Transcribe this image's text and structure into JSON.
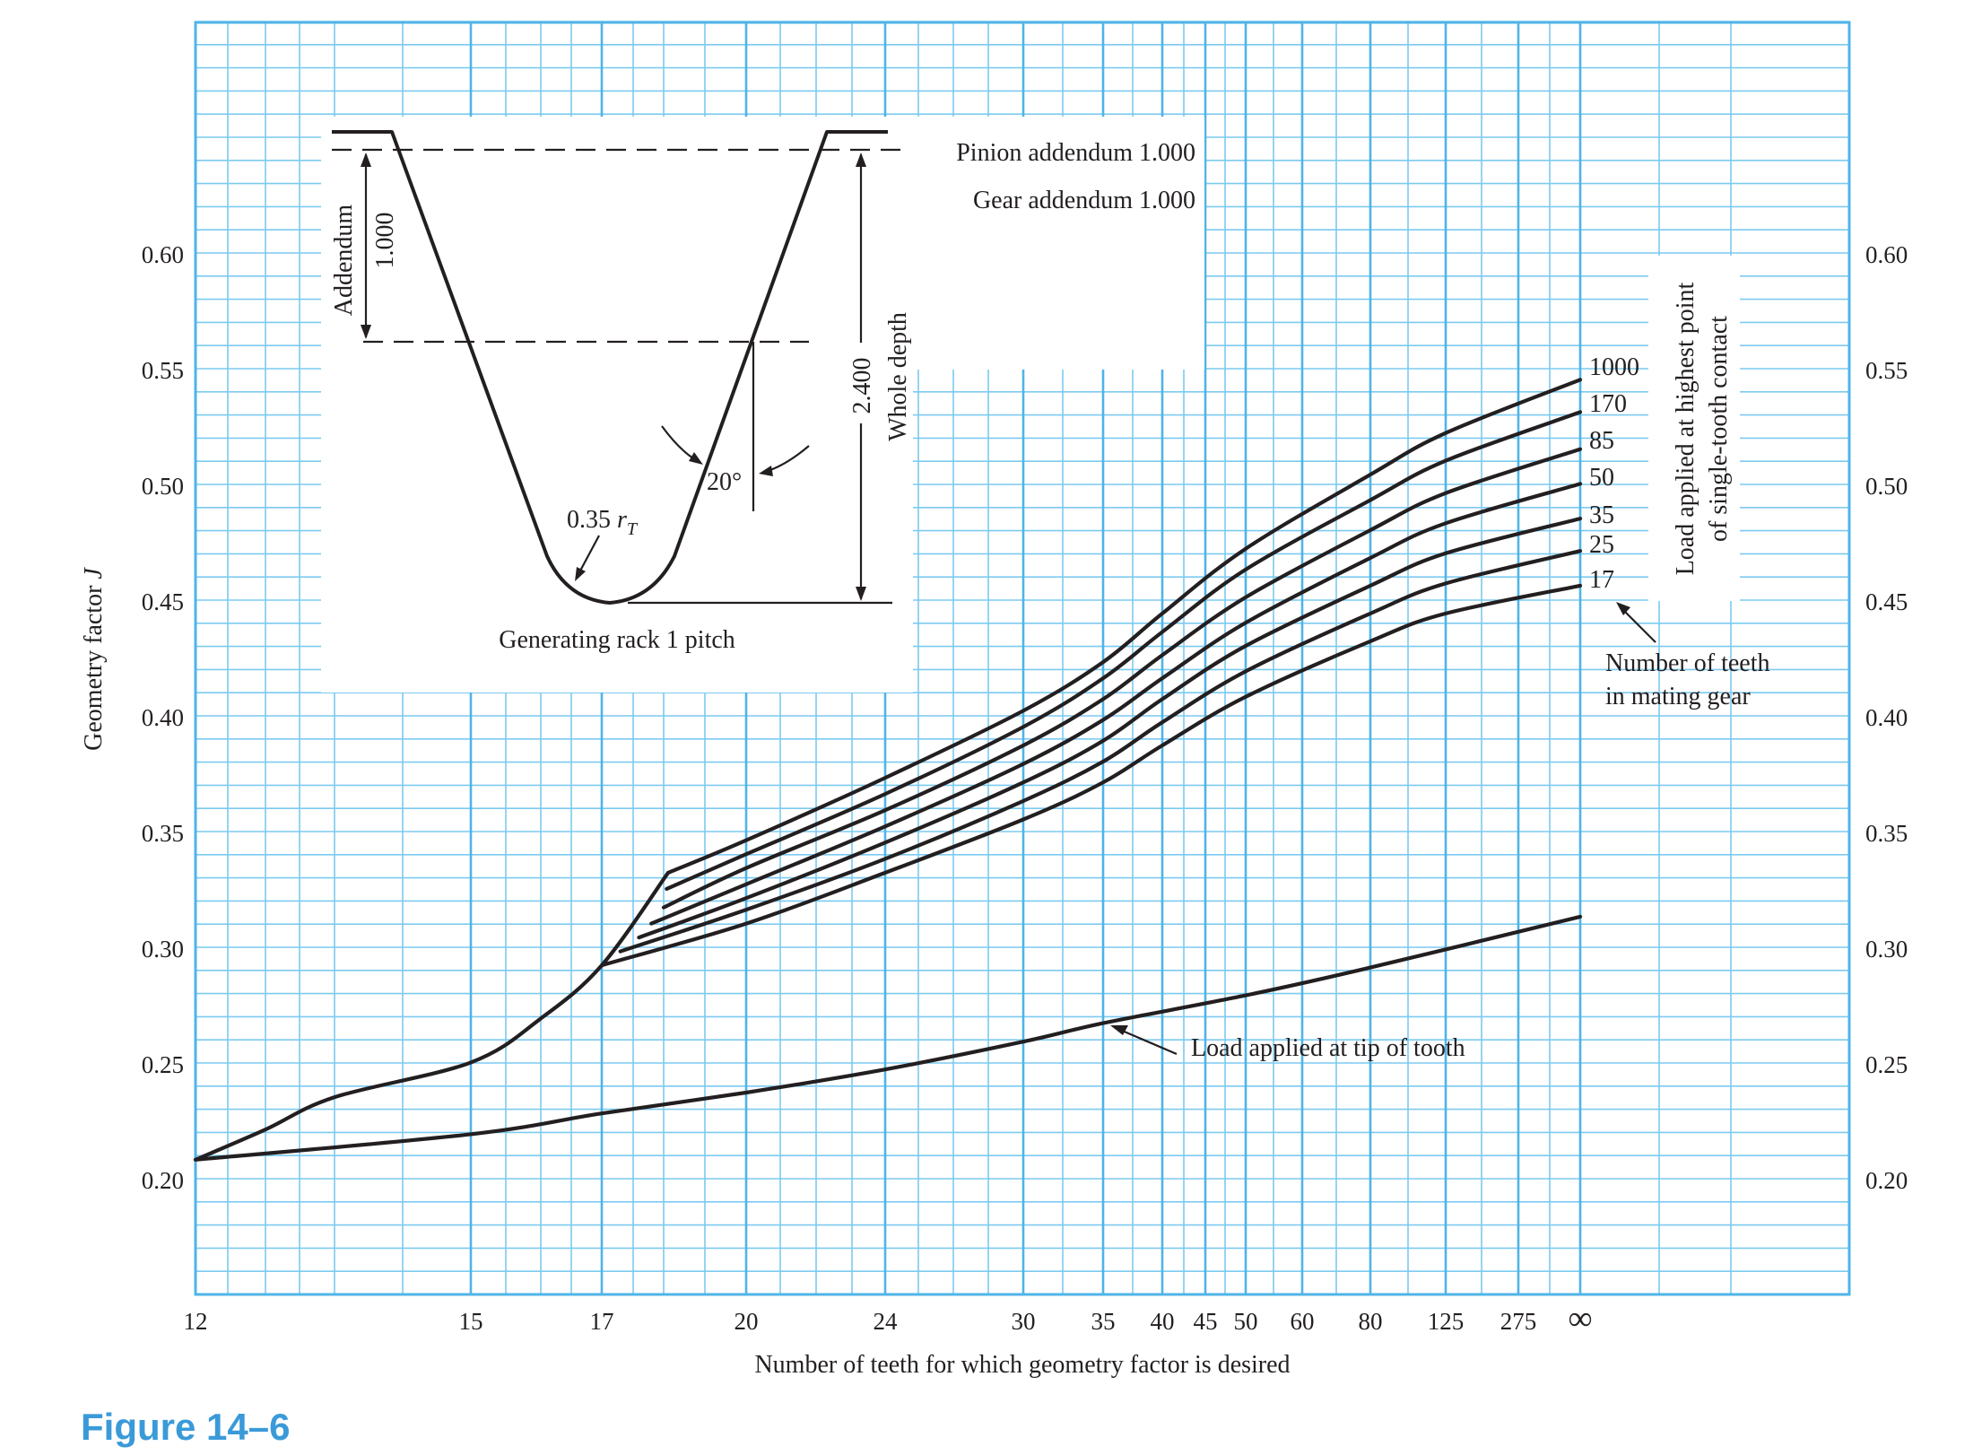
{
  "figure_label": "Figure 14–6",
  "chart_data": {
    "type": "line",
    "title": "Figure 14–6",
    "xlabel": "Number of teeth for which geometry factor is desired",
    "ylabel_main": "Geometry factor ",
    "ylabel_var": "J",
    "ylim": [
      0.15,
      0.7
    ],
    "yticks": [
      "0.60",
      "0.55",
      "0.50",
      "0.45",
      "0.40",
      "0.35",
      "0.30",
      "0.25",
      "0.20"
    ],
    "ytick_values": [
      0.6,
      0.55,
      0.5,
      0.45,
      0.4,
      0.35,
      0.3,
      0.25,
      0.2
    ],
    "xticks": [
      "12",
      "15",
      "17",
      "20",
      "24",
      "30",
      "35",
      "40",
      "45",
      "50",
      "60",
      "80",
      "125",
      "275",
      "∞"
    ],
    "series": [
      {
        "name": "Load applied at highest point of single-tooth contact, 1000 teeth in mating gear",
        "label": "1000",
        "N": [
          "18.3",
          "20",
          "24",
          "30",
          "35",
          "40",
          "50",
          "80",
          "125",
          "∞"
        ],
        "J": [
          0.333,
          0.347,
          0.374,
          0.403,
          0.424,
          0.445,
          0.473,
          0.505,
          0.523,
          0.546
        ]
      },
      {
        "name": "170",
        "label": "170",
        "N": [
          "18.2",
          "20",
          "24",
          "30",
          "35",
          "40",
          "50",
          "80",
          "125",
          "∞"
        ],
        "J": [
          0.326,
          0.341,
          0.367,
          0.396,
          0.417,
          0.437,
          0.464,
          0.494,
          0.511,
          0.532
        ]
      },
      {
        "name": "85",
        "label": "85",
        "N": [
          "18.0",
          "20",
          "24",
          "30",
          "35",
          "40",
          "50",
          "80",
          "125",
          "∞"
        ],
        "J": [
          0.318,
          0.335,
          0.36,
          0.388,
          0.408,
          0.427,
          0.452,
          0.481,
          0.497,
          0.516
        ]
      },
      {
        "name": "50",
        "label": "50",
        "N": [
          "17.8",
          "20",
          "24",
          "30",
          "35",
          "40",
          "50",
          "80",
          "125",
          "∞"
        ],
        "J": [
          0.311,
          0.328,
          0.353,
          0.38,
          0.399,
          0.417,
          0.441,
          0.469,
          0.484,
          0.501
        ]
      },
      {
        "name": "35",
        "label": "35",
        "N": [
          "17.6",
          "20",
          "24",
          "30",
          "35",
          "40",
          "50",
          "80",
          "125",
          "∞"
        ],
        "J": [
          0.305,
          0.322,
          0.346,
          0.372,
          0.39,
          0.408,
          0.431,
          0.457,
          0.471,
          0.486
        ]
      },
      {
        "name": "25",
        "label": "25",
        "N": [
          "17.3",
          "20",
          "24",
          "30",
          "35",
          "40",
          "50",
          "80",
          "125",
          "∞"
        ],
        "J": [
          0.299,
          0.317,
          0.339,
          0.364,
          0.381,
          0.398,
          0.42,
          0.445,
          0.458,
          0.472
        ]
      },
      {
        "name": "17",
        "label": "17",
        "N": [
          "17",
          "20",
          "24",
          "30",
          "35",
          "40",
          "50",
          "80",
          "125",
          "∞"
        ],
        "J": [
          0.293,
          0.311,
          0.333,
          0.356,
          0.372,
          0.388,
          0.409,
          0.433,
          0.445,
          0.457
        ]
      },
      {
        "name": "Common lower envelope (highest point of single-tooth contact)",
        "label": "",
        "N": [
          "12",
          "13",
          "14",
          "15",
          "16",
          "17",
          "18.3"
        ],
        "J": [
          0.209,
          0.222,
          0.236,
          0.251,
          0.27,
          0.293,
          0.333
        ]
      },
      {
        "name": "Load applied at tip of tooth",
        "label": "Load applied at tip of tooth",
        "N": [
          "12",
          "15",
          "17",
          "20",
          "24",
          "30",
          "35",
          "50",
          "80",
          "∞"
        ],
        "J": [
          0.209,
          0.22,
          0.229,
          0.238,
          0.248,
          0.26,
          0.268,
          0.28,
          0.292,
          0.314
        ]
      }
    ],
    "legend_title_line1": "Load applied at highest point",
    "legend_title_line2": "of single-tooth contact",
    "mating_label_line1": "Number of teeth",
    "mating_label_line2": "in mating gear",
    "inset": {
      "pinion_addendum": "Pinion addendum 1.000",
      "gear_addendum": "Gear addendum 1.000",
      "addendum_word": "Addendum",
      "addendum_value": "1.000",
      "whole_depth_value": "2.400",
      "whole_depth_word": "Whole depth",
      "angle": "20°",
      "fillet_radius": "0.35 ",
      "fillet_r": "r",
      "fillet_sub": "T",
      "caption": "Generating rack 1 pitch"
    }
  }
}
